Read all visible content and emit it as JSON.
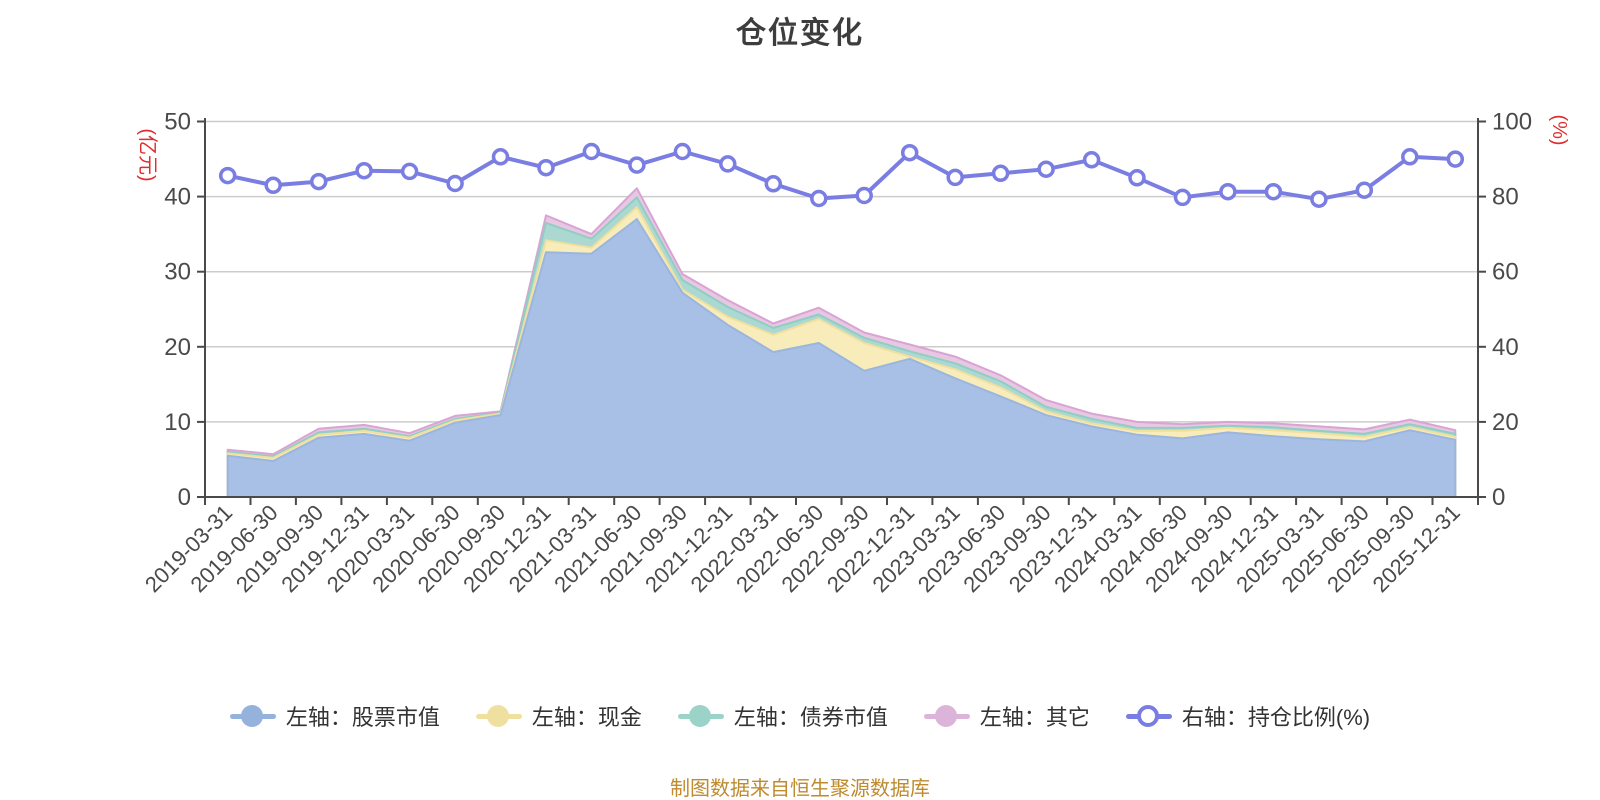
{
  "title": "仓位变化",
  "caption": "制图数据来自恒生聚源数据库",
  "legend": {
    "items": [
      {
        "id": "stock",
        "label": "左轴：股票市值",
        "color": "#94b2dc"
      },
      {
        "id": "cash",
        "label": "左轴：现金",
        "color": "#f0e0a0"
      },
      {
        "id": "bond",
        "label": "左轴：债券市值",
        "color": "#9cd3c9"
      },
      {
        "id": "other",
        "label": "左轴：其它",
        "color": "#ddb4d9"
      },
      {
        "id": "ratio",
        "label": "右轴：持仓比例(%)",
        "color": "#7a7ee2",
        "dot_fill": "#ffffff",
        "dot_border": true
      }
    ]
  },
  "chart_data": {
    "type": "area",
    "subtype": "stacked-area-with-line",
    "grid": true,
    "legend_position": "bottom",
    "categories": [
      "2019-03-31",
      "2019-06-30",
      "2019-09-30",
      "2019-12-31",
      "2020-03-31",
      "2020-06-30",
      "2020-09-30",
      "2020-12-31",
      "2021-03-31",
      "2021-06-30",
      "2021-09-30",
      "2021-12-31",
      "2022-03-31",
      "2022-06-30",
      "2022-09-30",
      "2022-12-31",
      "2023-03-31",
      "2023-06-30",
      "2023-09-30",
      "2023-12-31",
      "2024-03-31",
      "2024-06-30",
      "2024-09-30",
      "2024-12-31",
      "2025-03-31",
      "2025-06-30",
      "2025-09-30",
      "2025-12-31"
    ],
    "left_axis": {
      "name": "(亿元)",
      "name_color": "#e02e2e",
      "ticks": [
        0,
        10,
        20,
        30,
        40,
        50
      ],
      "ylim": [
        0,
        50
      ]
    },
    "right_axis": {
      "name": "(%)",
      "name_color": "#e02e2e",
      "ticks": [
        0,
        20,
        40,
        60,
        80,
        100
      ],
      "ylim": [
        0,
        100
      ]
    },
    "style": {
      "grid": "#cccccc",
      "axis": "#4a4a4a",
      "tick_color": "#4a4a4a"
    },
    "series": [
      {
        "id": "stock",
        "name": "左轴：股票市值",
        "axis": "left",
        "type": "area",
        "stack": true,
        "color": "#9ab5de",
        "fill": "#a8c0e5",
        "values": [
          5.5,
          4.8,
          7.9,
          8.4,
          7.5,
          9.9,
          10.9,
          32.6,
          32.4,
          37.0,
          27.2,
          22.9,
          19.3,
          20.5,
          16.8,
          18.4,
          15.8,
          13.4,
          10.9,
          9.4,
          8.3,
          7.8,
          8.6,
          8.1,
          7.7,
          7.4,
          8.9,
          7.6
        ]
      },
      {
        "id": "cash",
        "name": "左轴：现金",
        "axis": "left",
        "type": "area",
        "stack": true,
        "color": "#f0df9e",
        "fill": "#f8edba",
        "values": [
          0.3,
          0.4,
          0.4,
          0.4,
          0.4,
          0.3,
          0.2,
          1.6,
          0.8,
          1.6,
          0.4,
          1.1,
          2.3,
          3.2,
          3.7,
          0.3,
          1.2,
          1.2,
          0.5,
          0.4,
          0.5,
          1.0,
          0.6,
          0.8,
          0.8,
          0.6,
          0.4,
          0.4
        ]
      },
      {
        "id": "bond",
        "name": "左轴：债券市值",
        "axis": "left",
        "type": "area",
        "stack": true,
        "color": "#90cec4",
        "fill": "#abd9d1",
        "values": [
          0.2,
          0.2,
          0.3,
          0.3,
          0.2,
          0.2,
          0.1,
          2.3,
          1.2,
          1.3,
          1.3,
          1.3,
          0.9,
          0.6,
          0.7,
          0.7,
          0.8,
          0.8,
          0.6,
          0.6,
          0.4,
          0.4,
          0.3,
          0.4,
          0.3,
          0.4,
          0.4,
          0.4
        ]
      },
      {
        "id": "other",
        "name": "左轴：其它",
        "axis": "left",
        "type": "area",
        "stack": true,
        "color": "#d9a4d4",
        "fill": "#e8c7e2",
        "values": [
          0.3,
          0.3,
          0.5,
          0.5,
          0.4,
          0.4,
          0.2,
          1.0,
          0.6,
          1.2,
          0.8,
          0.9,
          0.6,
          0.9,
          0.7,
          0.9,
          0.9,
          0.8,
          0.9,
          0.7,
          0.8,
          0.5,
          0.5,
          0.5,
          0.6,
          0.6,
          0.6,
          0.5
        ]
      },
      {
        "id": "ratio",
        "name": "右轴：持仓比例(%)",
        "axis": "right",
        "type": "line",
        "color": "#7a7ee2",
        "marker_fill": "#ffffff",
        "values": [
          85.6,
          83.0,
          84.0,
          86.9,
          86.7,
          83.5,
          90.6,
          87.7,
          92.0,
          88.4,
          92.0,
          88.7,
          83.4,
          79.5,
          80.3,
          91.7,
          85.1,
          86.2,
          87.3,
          89.8,
          85.0,
          79.8,
          81.3,
          81.3,
          79.3,
          81.7,
          90.6,
          90.0
        ]
      }
    ]
  }
}
